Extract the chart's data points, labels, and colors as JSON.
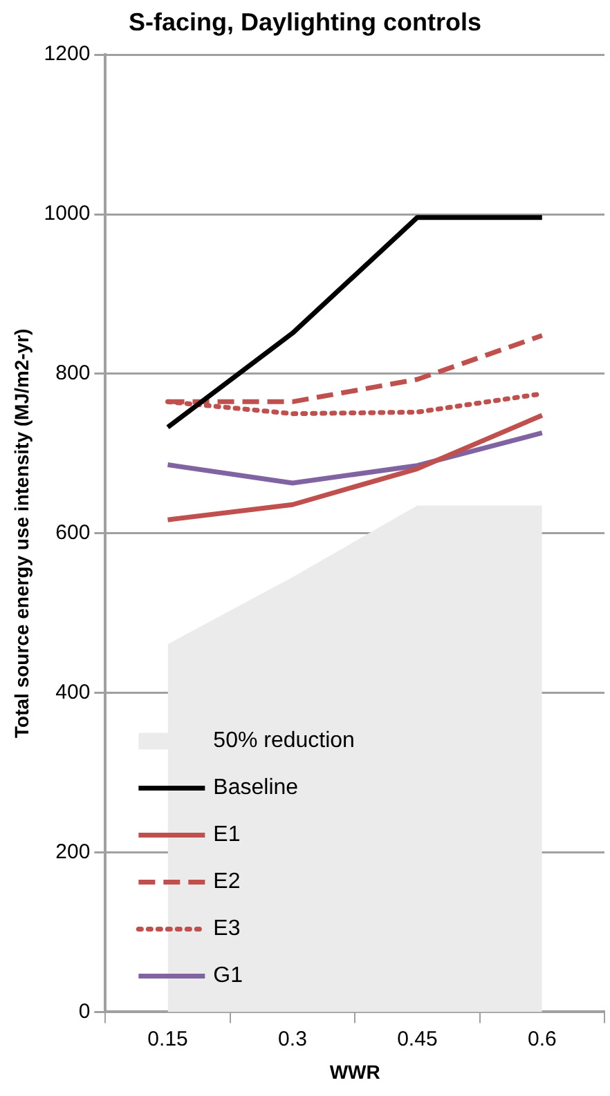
{
  "chart_data": {
    "type": "line",
    "title": "S-facing, Daylighting controls",
    "xlabel": "WWR",
    "ylabel": "Total source energy use intensity (MJ/m2-yr)",
    "categories": [
      "0.15",
      "0.3",
      "0.45",
      "0.6"
    ],
    "series": [
      {
        "name": "50% reduction",
        "type": "area",
        "color": "#ebebeb",
        "values": [
          461,
          545,
          635,
          635
        ]
      },
      {
        "name": "Baseline",
        "color": "#000000",
        "line_style": "solid",
        "values": [
          733,
          851,
          996,
          996
        ]
      },
      {
        "name": "E1",
        "color": "#c0504d",
        "line_style": "solid",
        "values": [
          617,
          636,
          681,
          748
        ]
      },
      {
        "name": "E2",
        "color": "#c0504d",
        "line_style": "dashed",
        "values": [
          765,
          765,
          793,
          848
        ]
      },
      {
        "name": "E3",
        "color": "#c0504d",
        "line_style": "dotted",
        "values": [
          765,
          750,
          752,
          775
        ]
      },
      {
        "name": "G1",
        "color": "#8064a2",
        "line_style": "solid",
        "values": [
          686,
          663,
          685,
          726
        ]
      }
    ],
    "ylim": [
      0,
      1200
    ],
    "yticks": [
      0,
      200,
      400,
      600,
      800,
      1000,
      1200
    ],
    "grid": "y",
    "legend": "bottom left",
    "marker": "none"
  }
}
